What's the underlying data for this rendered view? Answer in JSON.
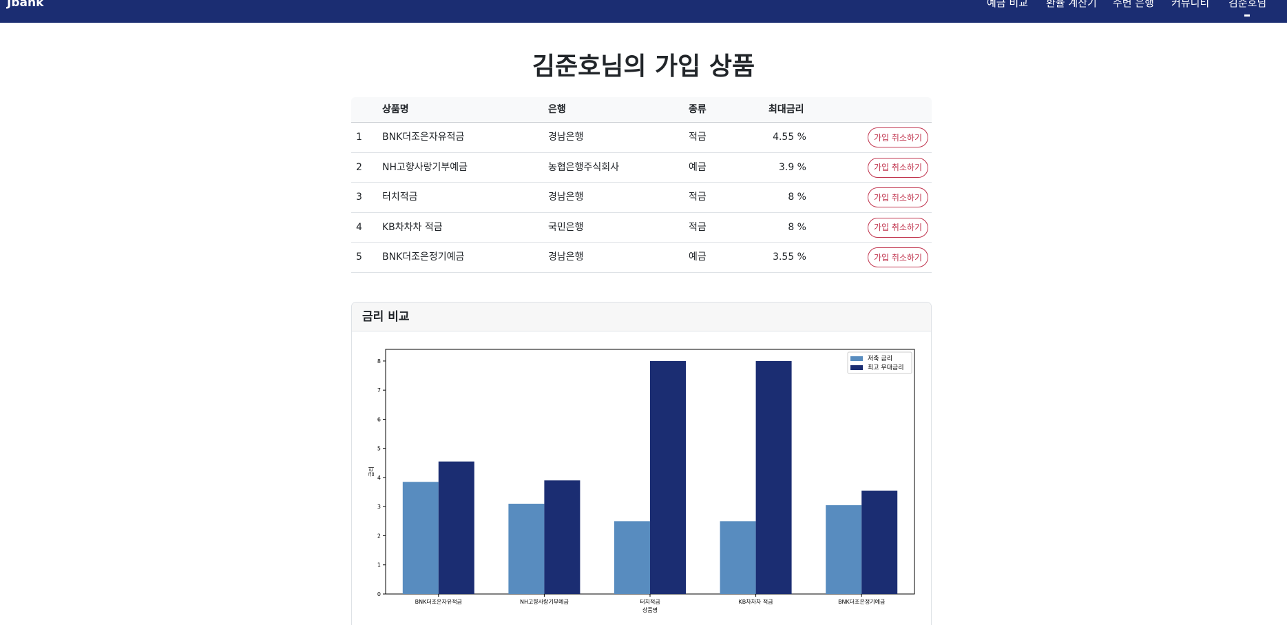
{
  "navbar": {
    "brand": "Jbank",
    "links": [
      "예금 비교",
      "환율 계산기",
      "주변 은행",
      "커뮤니티",
      "김준호님"
    ]
  },
  "page": {
    "title": "김준호님의 가입 상품"
  },
  "table": {
    "headers": [
      "상품명",
      "은행",
      "종류",
      "최대금리"
    ],
    "rows": [
      {
        "no": "1",
        "name": "BNK더조은자유적금",
        "bank": "경남은행",
        "type": "적금",
        "rate": "4.55 %"
      },
      {
        "no": "2",
        "name": "NH고향사랑기부예금",
        "bank": "농협은행주식회사",
        "type": "예금",
        "rate": "3.9 %"
      },
      {
        "no": "3",
        "name": "터치적금",
        "bank": "경남은행",
        "type": "적금",
        "rate": "8 %"
      },
      {
        "no": "4",
        "name": "KB차차차 적금",
        "bank": "국민은행",
        "type": "적금",
        "rate": "8 %"
      },
      {
        "no": "5",
        "name": "BNK더조은정기예금",
        "bank": "경남은행",
        "type": "예금",
        "rate": "3.55 %"
      }
    ],
    "cancel_label": "가입 취소하기"
  },
  "card": {
    "title": "금리 비교"
  },
  "chart_data": {
    "type": "bar",
    "categories": [
      "BNK더조은자유적금",
      "NH고향사랑기부예금",
      "터치적금",
      "KB차차차 적금",
      "BNK더조은정기예금"
    ],
    "series": [
      {
        "name": "저축 금리",
        "values": [
          3.85,
          3.1,
          2.5,
          2.5,
          3.05
        ],
        "color": "#588cbf"
      },
      {
        "name": "최고 우대금리",
        "values": [
          4.55,
          3.9,
          8,
          8,
          3.55
        ],
        "color": "#1b2d72"
      }
    ],
    "xlabel": "상품명",
    "ylabel": "금리",
    "ylim": [
      0,
      8.4
    ],
    "yticks": [
      "0",
      "1",
      "2",
      "3",
      "4",
      "5",
      "6",
      "7",
      "8"
    ],
    "legend": "top-right",
    "grid": false
  }
}
